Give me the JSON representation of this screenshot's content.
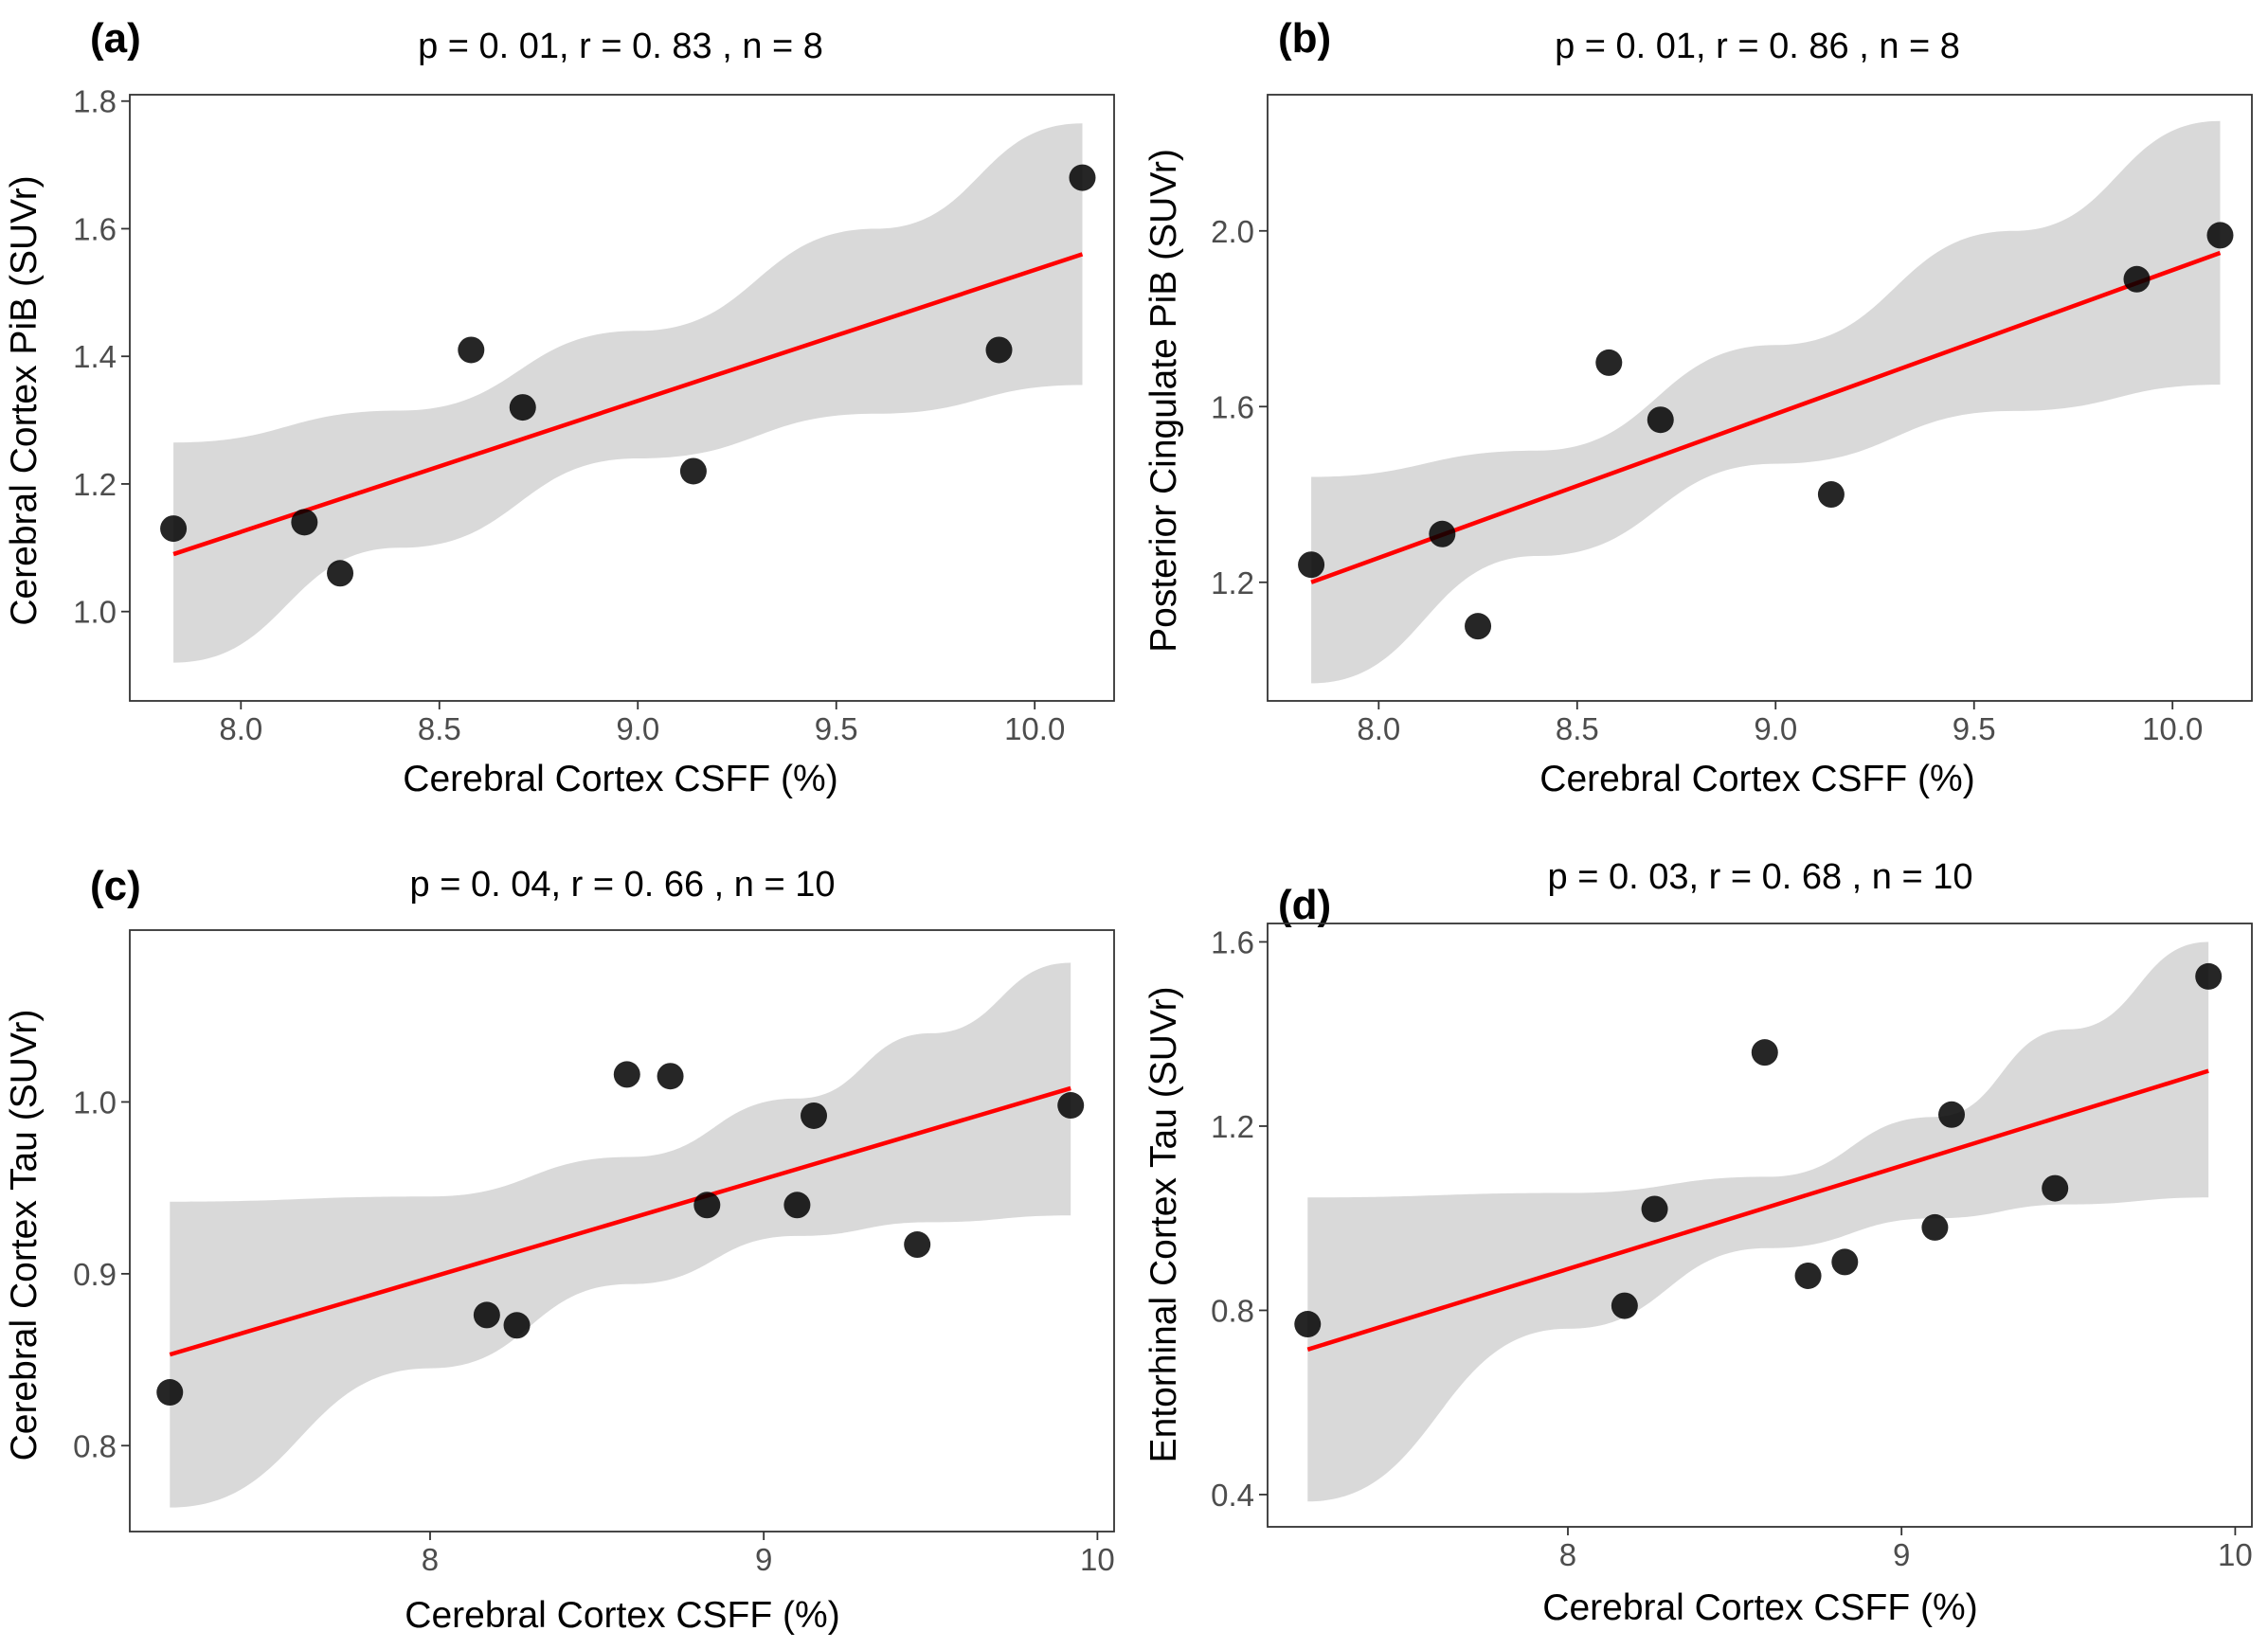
{
  "colors": {
    "point": "#000000",
    "fit_line": "#ff0000",
    "confidence_band": "#d9d9d9",
    "axis": "#333333",
    "tick_text": "#4d4d4d",
    "title_text": "#000000"
  },
  "chart_data": [
    {
      "panel": "(a)",
      "type": "scatter",
      "title": "p = 0. 01, r = 0. 83 , n = 8",
      "xlabel": "Cerebral Cortex CSFF (%)",
      "ylabel": "Cerebral Cortex PiB (SUVr)",
      "xlim": [
        7.72,
        10.2
      ],
      "ylim": [
        0.86,
        1.81
      ],
      "xticks": [
        8.0,
        8.5,
        9.0,
        9.5,
        10.0
      ],
      "xtick_labels": [
        "8.0",
        "8.5",
        "9.0",
        "9.5",
        "10.0"
      ],
      "yticks": [
        1.0,
        1.2,
        1.4,
        1.6,
        1.8
      ],
      "ytick_labels": [
        "1.0",
        "1.2",
        "1.4",
        "1.6",
        "1.8"
      ],
      "points": {
        "x": [
          7.83,
          8.16,
          8.25,
          8.58,
          8.71,
          9.14,
          9.91,
          10.12
        ],
        "y": [
          1.13,
          1.14,
          1.06,
          1.41,
          1.32,
          1.22,
          1.41,
          1.68
        ]
      },
      "fit_line": {
        "x": [
          7.83,
          10.12
        ],
        "y": [
          1.09,
          1.56
        ]
      },
      "confidence_band": {
        "x": [
          7.83,
          8.4,
          9.0,
          9.6,
          10.12
        ],
        "lower": [
          0.92,
          1.1,
          1.24,
          1.31,
          1.355
        ],
        "upper": [
          1.265,
          1.315,
          1.44,
          1.6,
          1.765
        ]
      }
    },
    {
      "panel": "(b)",
      "type": "scatter",
      "title": "p = 0. 01, r = 0. 86 , n = 8",
      "xlabel": "Cerebral Cortex CSFF (%)",
      "ylabel": "Posterior Cingulate PiB (SUVr)",
      "xlim": [
        7.72,
        10.2
      ],
      "ylim": [
        0.93,
        2.31
      ],
      "xticks": [
        8.0,
        8.5,
        9.0,
        9.5,
        10.0
      ],
      "xtick_labels": [
        "8.0",
        "8.5",
        "9.0",
        "9.5",
        "10.0"
      ],
      "yticks": [
        1.2,
        1.6,
        2.0
      ],
      "ytick_labels": [
        "1.2",
        "1.6",
        "2.0"
      ],
      "points": {
        "x": [
          7.83,
          8.16,
          8.25,
          8.58,
          8.71,
          9.14,
          9.91,
          10.12
        ],
        "y": [
          1.24,
          1.31,
          1.1,
          1.7,
          1.57,
          1.4,
          1.89,
          1.99
        ]
      },
      "fit_line": {
        "x": [
          7.83,
          10.12
        ],
        "y": [
          1.2,
          1.95
        ]
      },
      "confidence_band": {
        "x": [
          7.83,
          8.4,
          9.0,
          9.6,
          10.12
        ],
        "lower": [
          0.97,
          1.26,
          1.47,
          1.59,
          1.65
        ],
        "upper": [
          1.44,
          1.5,
          1.74,
          2.0,
          2.25
        ]
      }
    },
    {
      "panel": "(c)",
      "type": "scatter",
      "title": "p = 0. 04, r = 0. 66 , n = 10",
      "xlabel": "Cerebral Cortex CSFF (%)",
      "ylabel": "Cerebral Cortex Tau (SUVr)",
      "xlim": [
        7.1,
        10.05
      ],
      "ylim": [
        0.75,
        1.1
      ],
      "xticks": [
        8,
        9,
        10
      ],
      "xtick_labels": [
        "8",
        "9",
        "10"
      ],
      "yticks": [
        0.8,
        0.9,
        1.0
      ],
      "ytick_labels": [
        "0.8",
        "0.9",
        "1.0"
      ],
      "points": {
        "x": [
          7.22,
          8.17,
          8.26,
          8.59,
          8.72,
          8.83,
          9.1,
          9.15,
          9.46,
          9.92
        ],
        "y": [
          0.831,
          0.876,
          0.87,
          1.016,
          1.015,
          0.94,
          0.94,
          0.992,
          0.917,
          0.998
        ]
      },
      "fit_line": {
        "x": [
          7.22,
          9.92
        ],
        "y": [
          0.853,
          1.008
        ]
      },
      "confidence_band": {
        "x": [
          7.22,
          8.0,
          8.6,
          9.1,
          9.5,
          9.92
        ],
        "lower": [
          0.764,
          0.845,
          0.894,
          0.922,
          0.93,
          0.934
        ],
        "upper": [
          0.942,
          0.945,
          0.968,
          1.002,
          1.04,
          1.081
        ]
      }
    },
    {
      "panel": "(d)",
      "type": "scatter",
      "title": "p = 0. 03, r = 0. 68 , n = 10",
      "xlabel": "Cerebral Cortex CSFF (%)",
      "ylabel": "Entorhinal Cortex Tau (SUVr)",
      "xlim": [
        7.1,
        10.05
      ],
      "ylim": [
        0.33,
        1.64
      ],
      "xticks": [
        8,
        9,
        10
      ],
      "xtick_labels": [
        "8",
        "9",
        "10"
      ],
      "yticks": [
        0.4,
        0.8,
        1.2,
        1.6
      ],
      "ytick_labels": [
        "0.4",
        "0.8",
        "1.2",
        "1.6"
      ],
      "points": {
        "x": [
          7.22,
          8.17,
          8.26,
          8.59,
          8.72,
          8.83,
          9.1,
          9.15,
          9.46,
          9.92
        ],
        "y": [
          0.77,
          0.81,
          1.02,
          1.36,
          0.875,
          0.905,
          0.98,
          1.225,
          1.065,
          1.525
        ]
      },
      "fit_line": {
        "x": [
          7.22,
          9.92
        ],
        "y": [
          0.715,
          1.32
        ]
      },
      "confidence_band": {
        "x": [
          7.22,
          8.0,
          8.6,
          9.1,
          9.5,
          9.92
        ],
        "lower": [
          0.385,
          0.76,
          0.935,
          1.0,
          1.03,
          1.045
        ],
        "upper": [
          1.045,
          1.055,
          1.09,
          1.22,
          1.41,
          1.6
        ]
      }
    }
  ]
}
